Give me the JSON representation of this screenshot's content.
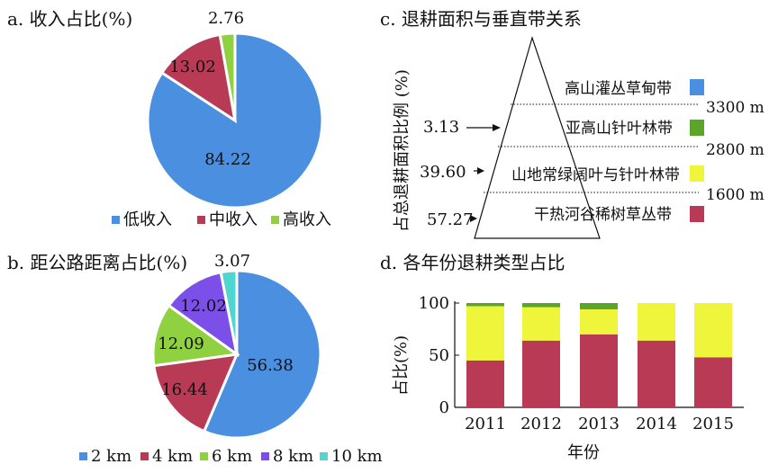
{
  "chart_data": [
    {
      "type": "pie",
      "title": "a. 收入占比(%)",
      "labels": [
        "低收入",
        "中收入",
        "高收入"
      ],
      "values": [
        84.22,
        13.02,
        2.76
      ],
      "value_labels": [
        "84.22",
        "13.02",
        "2.76"
      ],
      "colors": [
        "#4a8fe0",
        "#b83a55",
        "#8fd140"
      ],
      "legend": "bottom"
    },
    {
      "type": "pie",
      "title": "b. 距公路距离占比(%)",
      "labels": [
        "2 km",
        "4 km",
        "6 km",
        "8 km",
        "10 km"
      ],
      "values": [
        56.38,
        16.44,
        12.09,
        12.02,
        3.07
      ],
      "value_labels": [
        "56.38",
        "16.44",
        "12.09",
        "12.02",
        "3.07"
      ],
      "colors": [
        "#4a8fe0",
        "#b83a55",
        "#8fd140",
        "#7b4fe8",
        "#4fd6d1"
      ],
      "legend": "bottom"
    },
    {
      "type": "diagram",
      "title": "c. 退耕面积与垂直带关系",
      "ylabel": "占总退耕面积比例 (%)",
      "zones": [
        {
          "name": "高山灌丛草甸带",
          "color": "#4a8fe0"
        },
        {
          "name": "亚高山针叶林带",
          "color": "#5aa52a"
        },
        {
          "name": "山地常绿阔叶与针叶林带",
          "color": "#eef53a"
        },
        {
          "name": "干热河谷稀树草丛带",
          "color": "#b83a55"
        }
      ],
      "elevations": [
        "3300 m",
        "2800 m",
        "1600 m"
      ],
      "percentages": [
        "3.13",
        "39.60",
        "57.27"
      ]
    },
    {
      "type": "bar",
      "stacked": true,
      "title": "d. 各年份退耕类型占比",
      "xlabel": "年份",
      "ylabel": "占比(%)",
      "categories": [
        "2011",
        "2012",
        "2013",
        "2014",
        "2015"
      ],
      "ylim": [
        0,
        100
      ],
      "yticks": [
        0,
        50,
        100
      ],
      "series": [
        {
          "color": "#b83a55",
          "values": [
            45,
            64,
            70,
            64,
            48
          ]
        },
        {
          "color": "#eef53a",
          "values": [
            52,
            32,
            24,
            36,
            52
          ]
        },
        {
          "color": "#5aa52a",
          "values": [
            3,
            4,
            6,
            0,
            0
          ]
        }
      ]
    }
  ]
}
